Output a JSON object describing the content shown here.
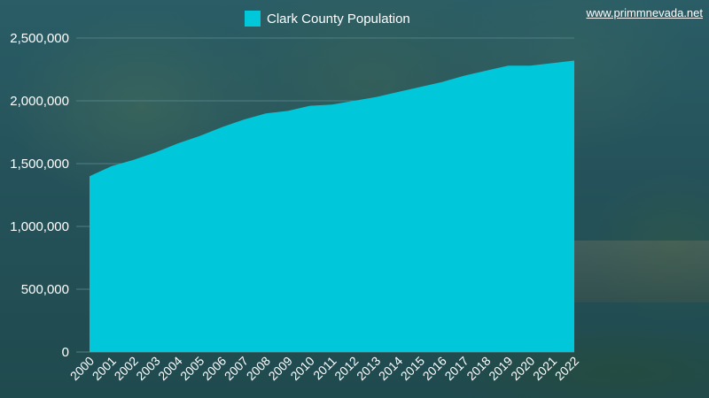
{
  "watermark": "www.primmnevada.net",
  "colors": {
    "area": "#00c8da",
    "grid": "#4f7f86",
    "text": "#ffffff"
  },
  "chart_data": {
    "type": "area",
    "title": "",
    "xlabel": "",
    "ylabel": "",
    "legend_position": "top-center",
    "grid": true,
    "ylim": [
      0,
      2500000
    ],
    "y_ticks": [
      0,
      500000,
      1000000,
      1500000,
      2000000,
      2500000
    ],
    "y_tick_labels": [
      "0",
      "500,000",
      "1,000,000",
      "1,500,000",
      "2,000,000",
      "2,500,000"
    ],
    "categories": [
      "2000",
      "2001",
      "2002",
      "2003",
      "2004",
      "2005",
      "2006",
      "2007",
      "2008",
      "2009",
      "2010",
      "2011",
      "2012",
      "2013",
      "2014",
      "2015",
      "2016",
      "2017",
      "2018",
      "2019",
      "2020",
      "2021",
      "2022"
    ],
    "series": [
      {
        "name": "Clark County Population",
        "values": [
          1400000,
          1480000,
          1530000,
          1590000,
          1660000,
          1720000,
          1790000,
          1850000,
          1900000,
          1920000,
          1960000,
          1970000,
          2000000,
          2030000,
          2070000,
          2110000,
          2150000,
          2200000,
          2240000,
          2280000,
          2280000,
          2300000,
          2320000
        ]
      }
    ]
  }
}
